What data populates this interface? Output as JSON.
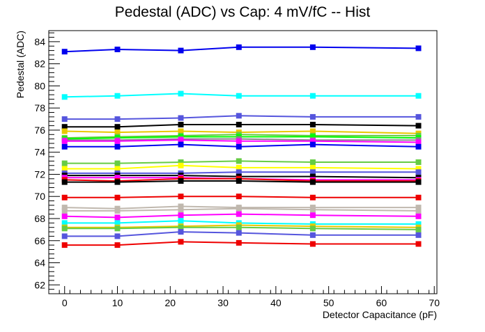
{
  "chart_data": {
    "type": "line",
    "title": "Pedestal (ADC) vs Cap: 4 mV/fC -- Hist",
    "xlabel": "Detector Capacitance (pF)",
    "ylabel": "Pedestal (ADC)",
    "xlim": [
      -3,
      70.5
    ],
    "ylim": [
      61.2,
      85.0
    ],
    "xticks": [
      0,
      10,
      20,
      30,
      40,
      50,
      60,
      70
    ],
    "yticks": [
      62,
      64,
      66,
      68,
      70,
      72,
      74,
      76,
      78,
      80,
      82,
      84
    ],
    "grid": false,
    "legend": "none",
    "marker": "square",
    "x": [
      0,
      10,
      22,
      33,
      47,
      67
    ],
    "series": [
      {
        "color": "#0000ee",
        "values": [
          83.1,
          83.3,
          83.2,
          83.5,
          83.5,
          83.4
        ]
      },
      {
        "color": "#00ffff",
        "values": [
          79.0,
          79.1,
          79.3,
          79.1,
          79.1,
          79.1
        ]
      },
      {
        "color": "#5555dd",
        "values": [
          77.0,
          77.0,
          77.1,
          77.3,
          77.2,
          77.2
        ]
      },
      {
        "color": "#000000",
        "values": [
          76.3,
          76.3,
          76.5,
          76.5,
          76.5,
          76.4
        ]
      },
      {
        "color": "#e8c800",
        "values": [
          75.9,
          75.8,
          75.9,
          75.8,
          75.9,
          75.7
        ]
      },
      {
        "color": "#66cc44",
        "values": [
          75.3,
          75.4,
          75.5,
          75.6,
          75.5,
          75.5
        ]
      },
      {
        "color": "#00ff00",
        "values": [
          75.2,
          75.3,
          75.4,
          75.4,
          75.4,
          75.3
        ]
      },
      {
        "color": "#888888",
        "values": [
          75.1,
          75.1,
          75.2,
          75.2,
          75.1,
          75.1
        ]
      },
      {
        "color": "#ff00ff",
        "values": [
          75.0,
          75.0,
          75.1,
          75.0,
          75.0,
          74.9
        ]
      },
      {
        "color": "#0000ee",
        "values": [
          74.5,
          74.5,
          74.7,
          74.5,
          74.7,
          74.5
        ]
      },
      {
        "color": "#66cc44",
        "values": [
          73.0,
          73.0,
          73.1,
          73.2,
          73.1,
          73.1
        ]
      },
      {
        "color": "#ffff00",
        "values": [
          72.5,
          72.5,
          72.8,
          72.6,
          72.6,
          72.5
        ]
      },
      {
        "color": "#5555dd",
        "values": [
          72.1,
          72.1,
          72.1,
          72.2,
          72.2,
          72.2
        ]
      },
      {
        "color": "#000000",
        "values": [
          71.9,
          71.9,
          71.9,
          71.8,
          71.8,
          71.7
        ]
      },
      {
        "color": "#ff00ff",
        "values": [
          71.7,
          71.7,
          71.7,
          71.6,
          71.5,
          71.5
        ]
      },
      {
        "color": "#ee0000",
        "values": [
          71.5,
          71.4,
          71.6,
          71.6,
          71.4,
          71.4
        ]
      },
      {
        "color": "#000000",
        "values": [
          71.3,
          71.3,
          71.4,
          71.4,
          71.3,
          71.3
        ]
      },
      {
        "color": "#ee0000",
        "values": [
          69.9,
          69.9,
          70.0,
          70.0,
          69.9,
          69.9
        ]
      },
      {
        "color": "#c0b8ae",
        "values": [
          69.0,
          68.9,
          69.1,
          69.0,
          69.0,
          69.0
        ]
      },
      {
        "color": "#c0b8ae",
        "values": [
          68.7,
          68.7,
          68.8,
          68.9,
          68.8,
          68.7
        ]
      },
      {
        "color": "#ff00ff",
        "values": [
          68.2,
          68.1,
          68.3,
          68.4,
          68.3,
          68.2
        ]
      },
      {
        "color": "#00ffff",
        "values": [
          67.6,
          67.6,
          67.8,
          67.6,
          67.5,
          67.5
        ]
      },
      {
        "color": "#e8c800",
        "values": [
          67.2,
          67.2,
          67.3,
          67.4,
          67.3,
          67.2
        ]
      },
      {
        "color": "#66cc44",
        "values": [
          67.1,
          67.1,
          67.2,
          67.2,
          67.1,
          67.0
        ]
      },
      {
        "color": "#5555dd",
        "values": [
          66.4,
          66.4,
          66.8,
          66.7,
          66.5,
          66.5
        ]
      },
      {
        "color": "#ee0000",
        "values": [
          65.6,
          65.6,
          65.9,
          65.8,
          65.7,
          65.7
        ]
      }
    ]
  }
}
